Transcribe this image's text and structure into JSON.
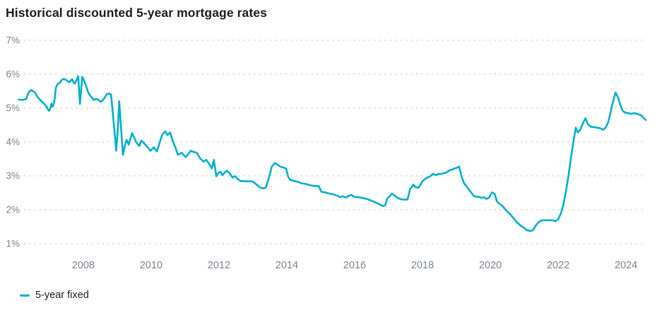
{
  "header": {
    "title": "Historical discounted 5-year mortgage rates"
  },
  "legend": {
    "items": [
      {
        "label": "5-year fixed",
        "color": "#00aecb",
        "marker": "line-swatch"
      }
    ]
  },
  "colors": {
    "background": "#ffffff",
    "line": "#00aecb",
    "title_text": "#1b1c1e",
    "axis_text": "#7b858d",
    "gridline": "#c9ced2"
  },
  "chart_data": {
    "type": "line",
    "title": "Historical discounted 5-year mortgage rates",
    "xlabel": "",
    "ylabel": "",
    "grid": "horizontal-dotted",
    "legend_position": "bottom-left",
    "xlim": [
      2006.17,
      2024.5
    ],
    "ylim": [
      1,
      7
    ],
    "x_ticks": [
      "2008",
      "2010",
      "2012",
      "2014",
      "2016",
      "2018",
      "2020",
      "2022",
      "2024"
    ],
    "x_tick_values": [
      2008,
      2010,
      2012,
      2014,
      2016,
      2018,
      2020,
      2022,
      2024
    ],
    "y_ticks": [
      "7%",
      "6%",
      "5%",
      "4%",
      "3%",
      "2%",
      "1%"
    ],
    "y_tick_values": [
      7,
      6,
      5,
      4,
      3,
      2,
      1
    ],
    "series": [
      {
        "name": "5-year fixed",
        "color": "#00aecb",
        "points": [
          [
            2006.1,
            5.25
          ],
          [
            2006.2,
            5.24
          ],
          [
            2006.31,
            5.26
          ],
          [
            2006.4,
            5.48
          ],
          [
            2006.46,
            5.53
          ],
          [
            2006.52,
            5.5
          ],
          [
            2006.58,
            5.45
          ],
          [
            2006.67,
            5.3
          ],
          [
            2006.77,
            5.2
          ],
          [
            2006.85,
            5.12
          ],
          [
            2006.92,
            5.04
          ],
          [
            2006.98,
            4.92
          ],
          [
            2007.02,
            4.96
          ],
          [
            2007.06,
            5.13
          ],
          [
            2007.1,
            5.04
          ],
          [
            2007.15,
            5.2
          ],
          [
            2007.19,
            5.6
          ],
          [
            2007.25,
            5.71
          ],
          [
            2007.31,
            5.75
          ],
          [
            2007.37,
            5.83
          ],
          [
            2007.42,
            5.86
          ],
          [
            2007.48,
            5.84
          ],
          [
            2007.54,
            5.79
          ],
          [
            2007.58,
            5.76
          ],
          [
            2007.63,
            5.81
          ],
          [
            2007.67,
            5.85
          ],
          [
            2007.71,
            5.76
          ],
          [
            2007.75,
            5.72
          ],
          [
            2007.79,
            5.8
          ],
          [
            2007.85,
            5.94
          ],
          [
            2007.9,
            5.12
          ],
          [
            2007.97,
            5.92
          ],
          [
            2008.02,
            5.82
          ],
          [
            2008.08,
            5.67
          ],
          [
            2008.13,
            5.5
          ],
          [
            2008.19,
            5.38
          ],
          [
            2008.25,
            5.31
          ],
          [
            2008.31,
            5.24
          ],
          [
            2008.38,
            5.27
          ],
          [
            2008.44,
            5.25
          ],
          [
            2008.5,
            5.19
          ],
          [
            2008.56,
            5.21
          ],
          [
            2008.63,
            5.3
          ],
          [
            2008.69,
            5.41
          ],
          [
            2008.77,
            5.43
          ],
          [
            2008.82,
            5.39
          ],
          [
            2008.88,
            4.75
          ],
          [
            2008.94,
            4.1
          ],
          [
            2008.97,
            3.74
          ],
          [
            2009.02,
            4.4
          ],
          [
            2009.06,
            5.2
          ],
          [
            2009.1,
            4.6
          ],
          [
            2009.17,
            3.62
          ],
          [
            2009.23,
            3.9
          ],
          [
            2009.28,
            4.06
          ],
          [
            2009.34,
            3.92
          ],
          [
            2009.44,
            4.26
          ],
          [
            2009.5,
            4.13
          ],
          [
            2009.56,
            4.0
          ],
          [
            2009.65,
            3.88
          ],
          [
            2009.71,
            4.04
          ],
          [
            2009.79,
            3.96
          ],
          [
            2009.88,
            3.86
          ],
          [
            2009.98,
            3.74
          ],
          [
            2010.08,
            3.84
          ],
          [
            2010.17,
            3.72
          ],
          [
            2010.25,
            3.98
          ],
          [
            2010.33,
            4.22
          ],
          [
            2010.42,
            4.31
          ],
          [
            2010.48,
            4.2
          ],
          [
            2010.56,
            4.28
          ],
          [
            2010.63,
            4.05
          ],
          [
            2010.71,
            3.85
          ],
          [
            2010.79,
            3.62
          ],
          [
            2010.9,
            3.68
          ],
          [
            2011.02,
            3.55
          ],
          [
            2011.1,
            3.65
          ],
          [
            2011.17,
            3.74
          ],
          [
            2011.27,
            3.7
          ],
          [
            2011.35,
            3.68
          ],
          [
            2011.44,
            3.52
          ],
          [
            2011.54,
            3.42
          ],
          [
            2011.63,
            3.47
          ],
          [
            2011.71,
            3.35
          ],
          [
            2011.79,
            3.22
          ],
          [
            2011.85,
            3.47
          ],
          [
            2011.92,
            2.99
          ],
          [
            2011.98,
            3.08
          ],
          [
            2012.04,
            3.12
          ],
          [
            2012.1,
            3.02
          ],
          [
            2012.17,
            3.1
          ],
          [
            2012.23,
            3.15
          ],
          [
            2012.31,
            3.08
          ],
          [
            2012.4,
            2.95
          ],
          [
            2012.48,
            2.99
          ],
          [
            2012.56,
            2.9
          ],
          [
            2012.63,
            2.85
          ],
          [
            2012.75,
            2.84
          ],
          [
            2012.88,
            2.84
          ],
          [
            2013.0,
            2.83
          ],
          [
            2013.1,
            2.75
          ],
          [
            2013.19,
            2.67
          ],
          [
            2013.29,
            2.63
          ],
          [
            2013.38,
            2.65
          ],
          [
            2013.46,
            2.9
          ],
          [
            2013.56,
            3.28
          ],
          [
            2013.65,
            3.38
          ],
          [
            2013.73,
            3.33
          ],
          [
            2013.81,
            3.27
          ],
          [
            2013.9,
            3.25
          ],
          [
            2013.98,
            3.21
          ],
          [
            2014.04,
            2.98
          ],
          [
            2014.1,
            2.88
          ],
          [
            2014.21,
            2.85
          ],
          [
            2014.33,
            2.82
          ],
          [
            2014.44,
            2.78
          ],
          [
            2014.56,
            2.76
          ],
          [
            2014.69,
            2.72
          ],
          [
            2014.81,
            2.7
          ],
          [
            2014.94,
            2.7
          ],
          [
            2015.02,
            2.53
          ],
          [
            2015.13,
            2.51
          ],
          [
            2015.25,
            2.48
          ],
          [
            2015.38,
            2.45
          ],
          [
            2015.5,
            2.41
          ],
          [
            2015.56,
            2.37
          ],
          [
            2015.65,
            2.4
          ],
          [
            2015.73,
            2.36
          ],
          [
            2015.83,
            2.41
          ],
          [
            2015.9,
            2.44
          ],
          [
            2015.98,
            2.38
          ],
          [
            2016.08,
            2.37
          ],
          [
            2016.17,
            2.36
          ],
          [
            2016.27,
            2.34
          ],
          [
            2016.38,
            2.31
          ],
          [
            2016.48,
            2.27
          ],
          [
            2016.56,
            2.24
          ],
          [
            2016.65,
            2.2
          ],
          [
            2016.75,
            2.15
          ],
          [
            2016.83,
            2.11
          ],
          [
            2016.9,
            2.13
          ],
          [
            2016.96,
            2.33
          ],
          [
            2017.04,
            2.4
          ],
          [
            2017.1,
            2.48
          ],
          [
            2017.17,
            2.43
          ],
          [
            2017.25,
            2.36
          ],
          [
            2017.33,
            2.32
          ],
          [
            2017.42,
            2.3
          ],
          [
            2017.5,
            2.3
          ],
          [
            2017.56,
            2.3
          ],
          [
            2017.63,
            2.6
          ],
          [
            2017.69,
            2.68
          ],
          [
            2017.73,
            2.74
          ],
          [
            2017.79,
            2.67
          ],
          [
            2017.88,
            2.65
          ],
          [
            2017.94,
            2.74
          ],
          [
            2018.0,
            2.84
          ],
          [
            2018.08,
            2.91
          ],
          [
            2018.15,
            2.95
          ],
          [
            2018.23,
            2.99
          ],
          [
            2018.31,
            3.06
          ],
          [
            2018.38,
            3.02
          ],
          [
            2018.46,
            3.05
          ],
          [
            2018.56,
            3.06
          ],
          [
            2018.63,
            3.08
          ],
          [
            2018.71,
            3.1
          ],
          [
            2018.79,
            3.16
          ],
          [
            2018.88,
            3.19
          ],
          [
            2018.96,
            3.22
          ],
          [
            2019.04,
            3.25
          ],
          [
            2019.08,
            3.27
          ],
          [
            2019.15,
            2.98
          ],
          [
            2019.23,
            2.77
          ],
          [
            2019.29,
            2.7
          ],
          [
            2019.35,
            2.62
          ],
          [
            2019.44,
            2.5
          ],
          [
            2019.5,
            2.42
          ],
          [
            2019.56,
            2.39
          ],
          [
            2019.65,
            2.38
          ],
          [
            2019.75,
            2.35
          ],
          [
            2019.81,
            2.37
          ],
          [
            2019.88,
            2.32
          ],
          [
            2019.96,
            2.35
          ],
          [
            2020.02,
            2.47
          ],
          [
            2020.06,
            2.51
          ],
          [
            2020.13,
            2.46
          ],
          [
            2020.19,
            2.25
          ],
          [
            2020.27,
            2.17
          ],
          [
            2020.35,
            2.12
          ],
          [
            2020.44,
            2.01
          ],
          [
            2020.52,
            1.93
          ],
          [
            2020.6,
            1.85
          ],
          [
            2020.69,
            1.74
          ],
          [
            2020.77,
            1.64
          ],
          [
            2020.85,
            1.57
          ],
          [
            2020.92,
            1.51
          ],
          [
            2021.0,
            1.46
          ],
          [
            2021.06,
            1.4
          ],
          [
            2021.13,
            1.38
          ],
          [
            2021.21,
            1.38
          ],
          [
            2021.27,
            1.41
          ],
          [
            2021.33,
            1.52
          ],
          [
            2021.42,
            1.63
          ],
          [
            2021.48,
            1.67
          ],
          [
            2021.56,
            1.69
          ],
          [
            2021.65,
            1.69
          ],
          [
            2021.75,
            1.69
          ],
          [
            2021.83,
            1.69
          ],
          [
            2021.92,
            1.66
          ],
          [
            2022.0,
            1.72
          ],
          [
            2022.08,
            1.89
          ],
          [
            2022.15,
            2.14
          ],
          [
            2022.23,
            2.55
          ],
          [
            2022.31,
            3.05
          ],
          [
            2022.38,
            3.55
          ],
          [
            2022.46,
            4.08
          ],
          [
            2022.52,
            4.42
          ],
          [
            2022.58,
            4.28
          ],
          [
            2022.65,
            4.36
          ],
          [
            2022.73,
            4.55
          ],
          [
            2022.8,
            4.7
          ],
          [
            2022.88,
            4.52
          ],
          [
            2022.96,
            4.45
          ],
          [
            2023.04,
            4.44
          ],
          [
            2023.15,
            4.42
          ],
          [
            2023.25,
            4.4
          ],
          [
            2023.33,
            4.36
          ],
          [
            2023.4,
            4.42
          ],
          [
            2023.48,
            4.6
          ],
          [
            2023.54,
            4.85
          ],
          [
            2023.6,
            5.12
          ],
          [
            2023.69,
            5.46
          ],
          [
            2023.77,
            5.3
          ],
          [
            2023.83,
            5.1
          ],
          [
            2023.9,
            4.92
          ],
          [
            2023.98,
            4.86
          ],
          [
            2024.06,
            4.85
          ],
          [
            2024.15,
            4.83
          ],
          [
            2024.25,
            4.85
          ],
          [
            2024.35,
            4.82
          ],
          [
            2024.44,
            4.79
          ],
          [
            2024.52,
            4.71
          ],
          [
            2024.58,
            4.65
          ]
        ]
      }
    ]
  }
}
